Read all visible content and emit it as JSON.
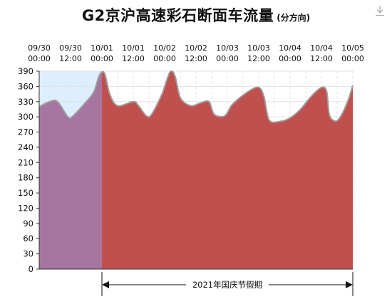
{
  "title": "G2京沪高速彩石断面车流量",
  "title_suffix": "(分方向)",
  "toolbar": {
    "download_icon": "download-icon"
  },
  "chart_data": {
    "type": "area",
    "title": "G2京沪高速彩石断面车流量",
    "subtitle": "(分方向)",
    "x_ticks": [
      {
        "date": "09/30",
        "time": "00:00",
        "t": 0
      },
      {
        "date": "09/30",
        "time": "12:00",
        "t": 12
      },
      {
        "date": "10/01",
        "time": "00:00",
        "t": 24
      },
      {
        "date": "10/01",
        "time": "12:00",
        "t": 36
      },
      {
        "date": "10/02",
        "time": "00:00",
        "t": 48
      },
      {
        "date": "10/02",
        "time": "12:00",
        "t": 60
      },
      {
        "date": "10/03",
        "time": "00:00",
        "t": 72
      },
      {
        "date": "10/03",
        "time": "12:00",
        "t": 84
      },
      {
        "date": "10/04",
        "time": "00:00",
        "t": 96
      },
      {
        "date": "10/04",
        "time": "12:00",
        "t": 108
      },
      {
        "date": "10/05",
        "time": "00:00",
        "t": 120
      }
    ],
    "xlim": [
      0,
      120
    ],
    "ylim": [
      0,
      390
    ],
    "y_ticks": [
      0,
      30,
      60,
      90,
      120,
      150,
      180,
      210,
      240,
      270,
      300,
      330,
      360,
      390
    ],
    "grid": true,
    "series": [
      {
        "color": "#c0504d",
        "points": [
          [
            0,
            320
          ],
          [
            4,
            330
          ],
          [
            7,
            330
          ],
          [
            11,
            300
          ],
          [
            13,
            302
          ],
          [
            18,
            330
          ],
          [
            21,
            350
          ],
          [
            23,
            382
          ],
          [
            25,
            386
          ],
          [
            27,
            345
          ],
          [
            30,
            322
          ],
          [
            36,
            330
          ],
          [
            38,
            322
          ],
          [
            41,
            302
          ],
          [
            43,
            305
          ],
          [
            47,
            345
          ],
          [
            50,
            388
          ],
          [
            52,
            380
          ],
          [
            54,
            338
          ],
          [
            58,
            322
          ],
          [
            62,
            328
          ],
          [
            65,
            330
          ],
          [
            67,
            305
          ],
          [
            71,
            302
          ],
          [
            74,
            325
          ],
          [
            80,
            350
          ],
          [
            84,
            358
          ],
          [
            86,
            340
          ],
          [
            88,
            294
          ],
          [
            92,
            291
          ],
          [
            96,
            298
          ],
          [
            100,
            315
          ],
          [
            104,
            340
          ],
          [
            108,
            358
          ],
          [
            110,
            350
          ],
          [
            111,
            305
          ],
          [
            113,
            292
          ],
          [
            115,
            298
          ],
          [
            118,
            330
          ],
          [
            120,
            362
          ]
        ]
      }
    ],
    "highlight": {
      "from_t": 0,
      "to_t": 24,
      "band_color": "#dceeff",
      "overlay_color": "#a676a0"
    },
    "annotation": {
      "text": "2021年国庆节假期",
      "from_t": 24,
      "to_t": 120
    }
  }
}
